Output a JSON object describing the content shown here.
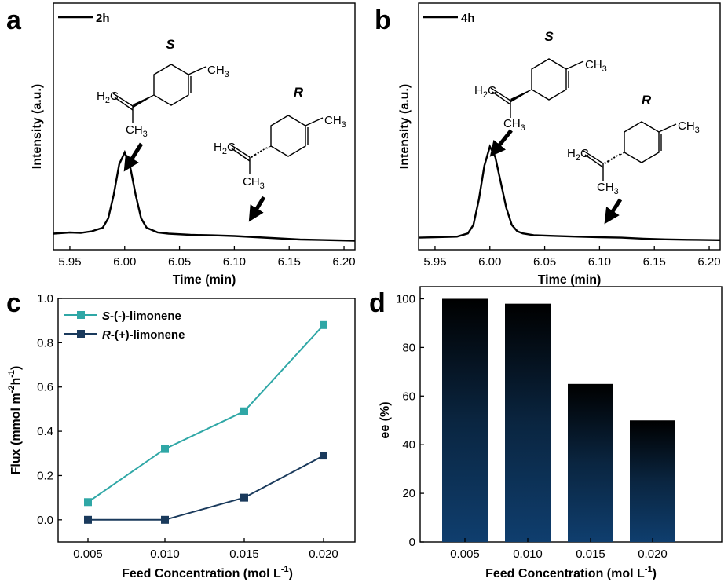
{
  "panels": {
    "a": {
      "letter": "a",
      "legend": "2h",
      "xlabel": "Time (min)",
      "ylabel": "Intensity (a.u.)",
      "x_ticks": [
        "5.95",
        "6.00",
        "6.05",
        "6.10",
        "6.15",
        "6.20"
      ],
      "label_S": "S",
      "label_R": "R"
    },
    "b": {
      "letter": "b",
      "legend": "4h",
      "xlabel": "Time (min)",
      "ylabel": "Intensity (a.u.)",
      "x_ticks": [
        "5.95",
        "6.00",
        "6.05",
        "6.10",
        "6.15",
        "6.20"
      ],
      "label_S": "S",
      "label_R": "R"
    },
    "c": {
      "letter": "c",
      "xlabel": "Feed Concentration (mol L",
      "xlabel_sup": "-1",
      "xlabel_end": ")",
      "ylabel": "Flux (mmol m",
      "ylabel_sup1": "-2",
      "ylabel_mid": "h",
      "ylabel_sup2": "-1",
      "ylabel_end": ")",
      "x_ticks": [
        "0.005",
        "0.010",
        "0.015",
        "0.020"
      ],
      "y_ticks": [
        "0.0",
        "0.2",
        "0.4",
        "0.6",
        "0.8",
        "1.0"
      ],
      "legend": [
        {
          "prefix": "S",
          "rest": "-(-)-limonene"
        },
        {
          "prefix": "R",
          "rest": "-(+)-limonene"
        }
      ]
    },
    "d": {
      "letter": "d",
      "xlabel": "Feed Concentration (mol L",
      "xlabel_sup": "-1",
      "xlabel_end": ")",
      "ylabel": "ee (%)",
      "x_ticks": [
        "0.005",
        "0.010",
        "0.015",
        "0.020"
      ],
      "y_ticks": [
        "0",
        "20",
        "40",
        "60",
        "80",
        "100"
      ]
    }
  },
  "chem_text": {
    "ch3": "CH",
    "ch3_sub": "3",
    "h2c_h": "H",
    "h2c_sub": "2",
    "h2c_c": "C"
  },
  "colors": {
    "s_series": "#2fa7a6",
    "r_series": "#1a3a5c",
    "bar_top": "#000000",
    "bar_bottom": "#0f3e6e"
  },
  "chart_data": [
    {
      "type": "line",
      "panel": "a",
      "xlabel": "Time (min)",
      "ylabel": "Intensity (a.u.)",
      "xlim": [
        5.935,
        6.21
      ],
      "series": [
        {
          "name": "2h",
          "x": [
            5.935,
            5.95,
            5.96,
            5.97,
            5.98,
            5.985,
            5.99,
            5.995,
            6.0,
            6.005,
            6.01,
            6.015,
            6.02,
            6.03,
            6.04,
            6.06,
            6.08,
            6.1,
            6.12,
            6.14,
            6.16,
            6.18,
            6.21
          ],
          "y": [
            0.035,
            0.04,
            0.038,
            0.045,
            0.06,
            0.1,
            0.2,
            0.33,
            0.38,
            0.32,
            0.2,
            0.1,
            0.06,
            0.04,
            0.035,
            0.03,
            0.028,
            0.025,
            0.02,
            0.015,
            0.01,
            0.008,
            0.005
          ]
        }
      ]
    },
    {
      "type": "line",
      "panel": "b",
      "xlabel": "Time (min)",
      "ylabel": "Intensity (a.u.)",
      "xlim": [
        5.935,
        6.21
      ],
      "series": [
        {
          "name": "4h",
          "x": [
            5.935,
            5.95,
            5.97,
            5.98,
            5.985,
            5.99,
            5.995,
            6.0,
            6.005,
            6.01,
            6.015,
            6.02,
            6.025,
            6.03,
            6.04,
            6.06,
            6.08,
            6.1,
            6.12,
            6.14,
            6.16,
            6.18,
            6.21
          ],
          "y": [
            0.02,
            0.022,
            0.025,
            0.04,
            0.08,
            0.2,
            0.36,
            0.45,
            0.4,
            0.28,
            0.16,
            0.08,
            0.05,
            0.04,
            0.032,
            0.028,
            0.025,
            0.022,
            0.02,
            0.015,
            0.012,
            0.01,
            0.008
          ]
        }
      ]
    },
    {
      "type": "line",
      "panel": "c",
      "xlabel": "Feed Concentration (mol L-1)",
      "ylabel": "Flux (mmol m-2h-1)",
      "ylim": [
        -0.1,
        1.0
      ],
      "categories": [
        "0.005",
        "0.010",
        "0.015",
        "0.020"
      ],
      "x": [
        0.005,
        0.01,
        0.015,
        0.02
      ],
      "series": [
        {
          "name": "S-(-)-limonene",
          "values": [
            0.08,
            0.32,
            0.49,
            0.88
          ]
        },
        {
          "name": "R-(+)-limonene",
          "values": [
            0.0,
            0.0,
            0.1,
            0.29
          ]
        }
      ]
    },
    {
      "type": "bar",
      "panel": "d",
      "xlabel": "Feed Concentration (mol L-1)",
      "ylabel": "ee (%)",
      "ylim": [
        0,
        105
      ],
      "categories": [
        "0.005",
        "0.010",
        "0.015",
        "0.020"
      ],
      "values": [
        100,
        98,
        65,
        50
      ]
    }
  ]
}
